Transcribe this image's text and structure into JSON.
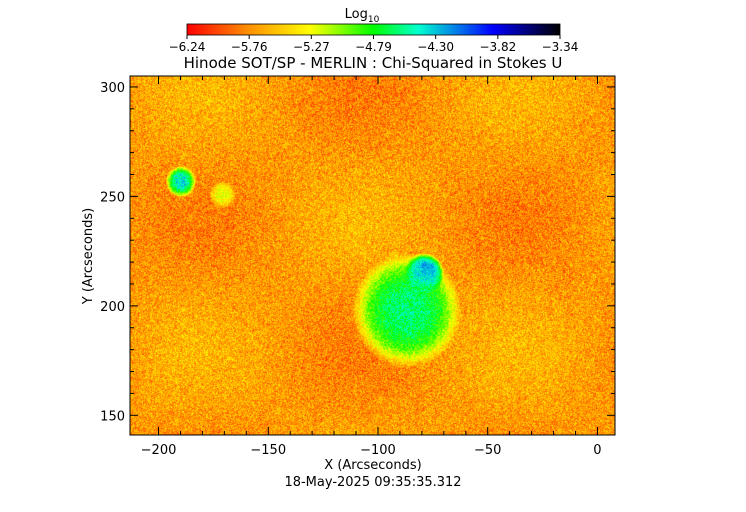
{
  "chart_data": {
    "type": "heatmap",
    "colorbar": {
      "title": "Log",
      "title_subscript": "10",
      "ticks": [
        "-6.24",
        "-5.76",
        "-5.27",
        "-4.79",
        "-4.30",
        "-3.82",
        "-3.34"
      ],
      "range": [
        -6.24,
        -3.34
      ],
      "colors": [
        "#ff0000",
        "#ff8c00",
        "#ffff00",
        "#00ff00",
        "#00ffd0",
        "#0000ff",
        "#000000"
      ]
    },
    "title": "Hinode SOT/SP - MERLIN : Chi-Squared in Stokes U",
    "xlabel": "X (Arcseconds)",
    "ylabel": "Y (Arcseconds)",
    "xlim": [
      -213,
      8
    ],
    "ylim": [
      141,
      305
    ],
    "xticks": [
      -200,
      -150,
      -100,
      -50,
      0
    ],
    "yticks": [
      150,
      200,
      250,
      300
    ],
    "xtick_labels": [
      "−200",
      "−150",
      "−100",
      "−50",
      "0"
    ],
    "ytick_labels": [
      "150",
      "200",
      "250",
      "300"
    ],
    "features": [
      {
        "name": "sunspot-umbra",
        "x": -79,
        "y": 215,
        "value": -3.9
      },
      {
        "name": "sunspot-penumbra",
        "x": -87,
        "y": 198,
        "value": -4.6
      },
      {
        "name": "pore-left",
        "x": -190,
        "y": 257,
        "value": -4.4
      },
      {
        "name": "plage-patch",
        "x": -171,
        "y": 251,
        "value": -4.9
      }
    ],
    "background_value": -5.7,
    "timestamp": "18-May-2025 09:35:35.312"
  }
}
